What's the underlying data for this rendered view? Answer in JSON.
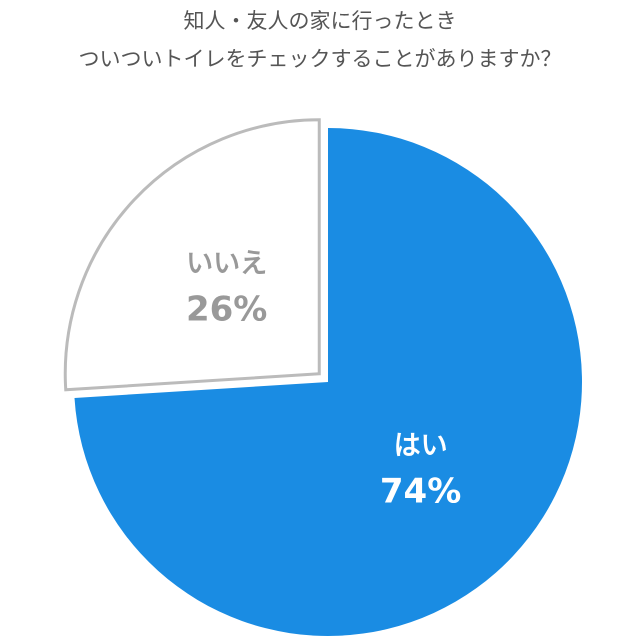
{
  "chart_data": {
    "type": "pie",
    "title": [
      "知人・友人の家に行ったとき",
      "ついついトイレをチェックすることがありますか？"
    ],
    "categories": [
      "はい",
      "いいえ"
    ],
    "values": [
      74,
      26
    ],
    "value_labels": [
      "74%",
      "26%"
    ],
    "colors": [
      "#1a8ce3",
      "#ffffff"
    ],
    "label_colors": [
      "#ffffff",
      "#999999"
    ]
  }
}
